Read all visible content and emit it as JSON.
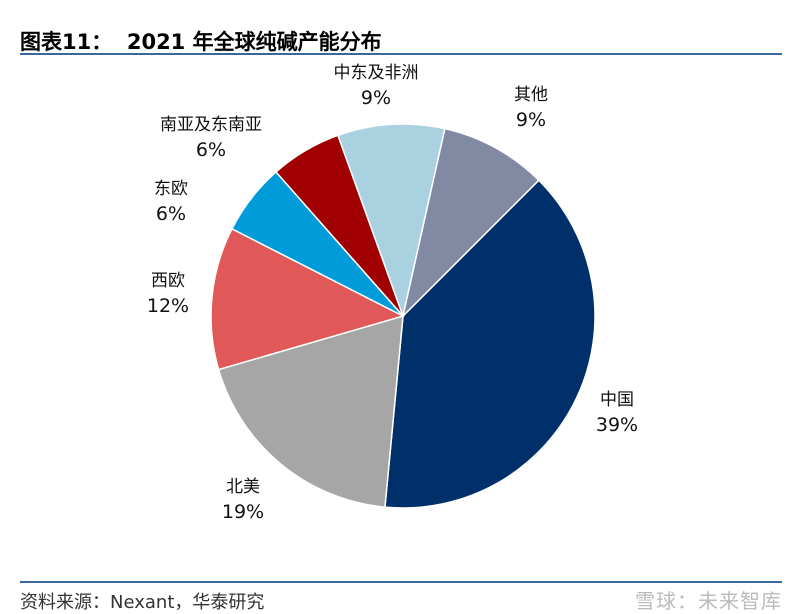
{
  "header": {
    "title": "图表11：  2021 年全球纯碱产能分布"
  },
  "footer": {
    "source": "资料来源：Nexant，华泰研究",
    "watermark": "雪球：未来智库"
  },
  "chart_data": {
    "type": "pie",
    "title": "2021 年全球纯碱产能分布",
    "categories": [
      "中国",
      "北美",
      "西欧",
      "东欧",
      "南亚及东南亚",
      "中东及非洲",
      "其他"
    ],
    "values": [
      39,
      19,
      12,
      6,
      6,
      9,
      9
    ],
    "labels": [
      "39%",
      "19%",
      "12%",
      "6%",
      "6%",
      "9%",
      "9%"
    ],
    "colors": [
      "#00306a",
      "#a6a6a6",
      "#e05858",
      "#009bd9",
      "#a00000",
      "#a9d1e0",
      "#8189a3"
    ],
    "start_angle_deg": 45,
    "direction": "clockwise"
  }
}
